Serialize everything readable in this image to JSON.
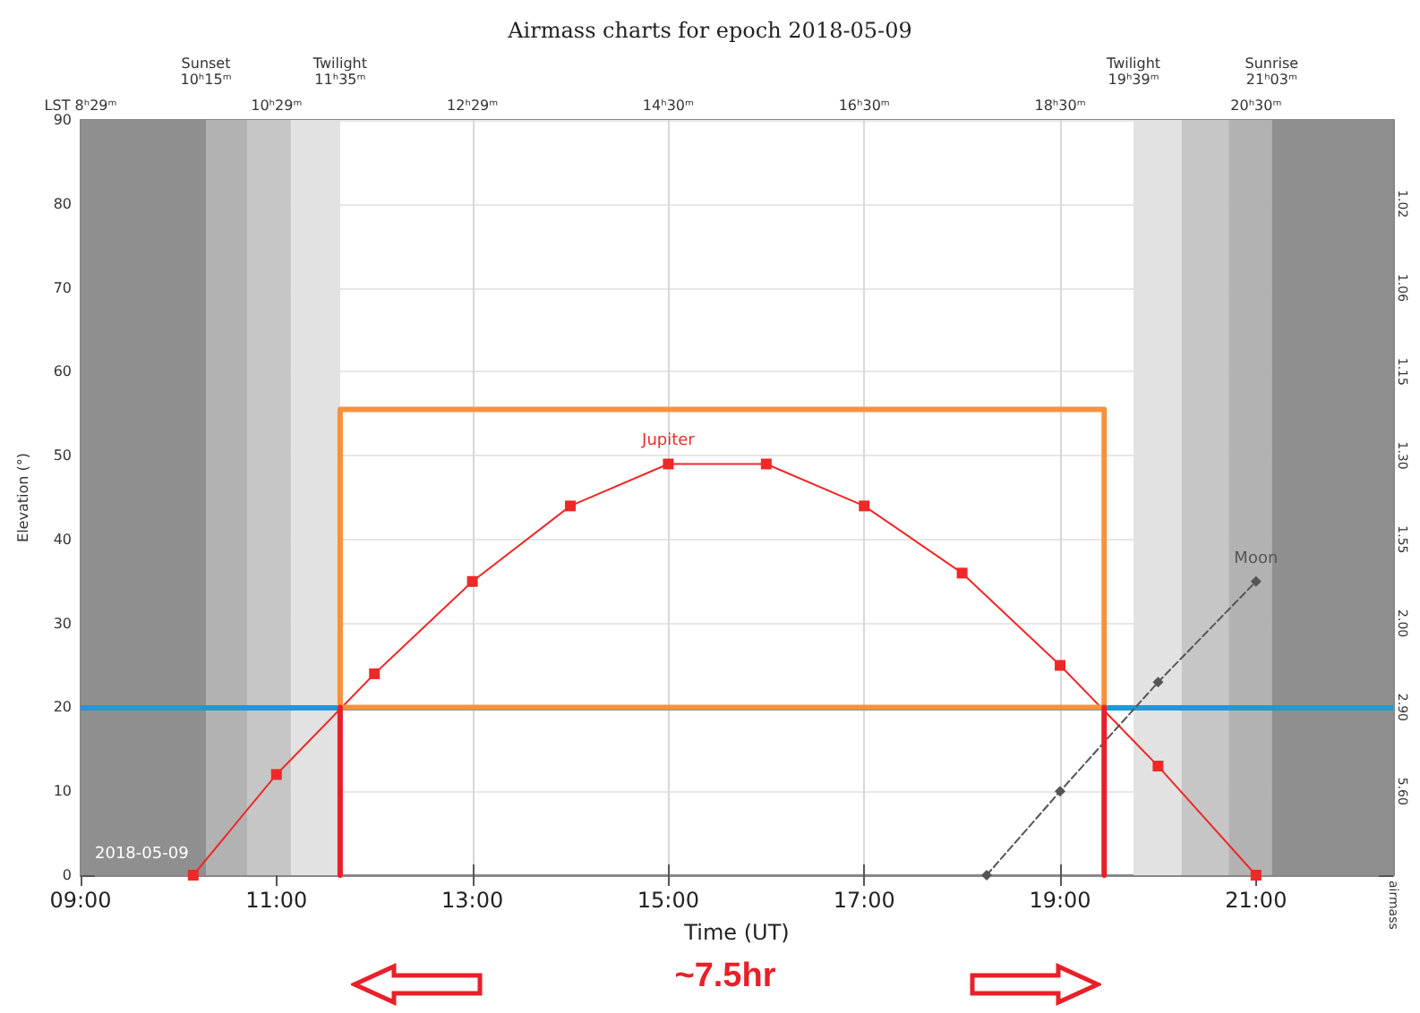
{
  "chart_data": {
    "type": "line",
    "title": "Airmass charts for epoch 2018-05-09",
    "xlabel": "Time (UT)",
    "ylabel": "Elevation (°)",
    "xlim": [
      9,
      22.4
    ],
    "xticks": [
      {
        "value": 9,
        "label": "09:00"
      },
      {
        "value": 11,
        "label": "11:00"
      },
      {
        "value": 13,
        "label": "13:00"
      },
      {
        "value": 15,
        "label": "15:00"
      },
      {
        "value": 17,
        "label": "17:00"
      },
      {
        "value": 19,
        "label": "19:00"
      },
      {
        "value": 21,
        "label": "21:00"
      }
    ],
    "ylim": [
      0,
      90
    ],
    "yticks": [
      0,
      10,
      20,
      30,
      40,
      50,
      60,
      70,
      80,
      90
    ],
    "y2label": "airmass",
    "grid": true,
    "legend": false,
    "series": [
      {
        "name": "Jupiter",
        "color": "#f02828",
        "marker": "square",
        "line_style": "solid",
        "x": [
          10.15,
          11,
          12,
          13,
          14,
          15,
          16,
          17,
          18,
          19,
          20,
          21
        ],
        "values": [
          0,
          12,
          24,
          35,
          44,
          49,
          49,
          44,
          36,
          25,
          13,
          0
        ]
      },
      {
        "name": "Moon",
        "color": "#555555",
        "marker": "diamond",
        "line_style": "dashed",
        "x": [
          18.25,
          19,
          20,
          21
        ],
        "values": [
          0,
          10,
          23,
          35
        ]
      },
      {
        "color": "#f7913d",
        "marker": "none",
        "line_style": "solid",
        "x": [
          11.65,
          11.65,
          19.45,
          19.45
        ],
        "values": [
          20,
          55.5,
          55.5,
          20
        ]
      },
      {
        "color": "#f7913d",
        "marker": "none",
        "line_style": "solid",
        "x": [
          11.65,
          19.45
        ],
        "values": [
          20,
          20
        ]
      },
      {
        "color": "#e8202a",
        "marker": "none",
        "line_style": "solid",
        "x": [
          11.65,
          11.65
        ],
        "values": [
          0,
          20
        ]
      },
      {
        "color": "#e8202a",
        "marker": "none",
        "line_style": "solid",
        "x": [
          19.45,
          19.45
        ],
        "values": [
          0,
          20
        ]
      }
    ],
    "ref_lines": [
      {
        "axis": "y",
        "value": 20,
        "color": "#1c9ad6"
      }
    ],
    "bands": [
      {
        "axis": "x",
        "from": 9,
        "to": 10.28,
        "color": "#8f8f8f"
      },
      {
        "axis": "x",
        "from": 10.28,
        "to": 10.7,
        "color": "#b2b2b2"
      },
      {
        "axis": "x",
        "from": 10.7,
        "to": 11.15,
        "color": "#c6c6c6"
      },
      {
        "axis": "x",
        "from": 11.15,
        "to": 11.65,
        "color": "#e2e2e2"
      },
      {
        "axis": "x",
        "from": 19.75,
        "to": 20.24,
        "color": "#e2e2e2"
      },
      {
        "axis": "x",
        "from": 20.24,
        "to": 20.72,
        "color": "#c6c6c6"
      },
      {
        "axis": "x",
        "from": 20.72,
        "to": 21.16,
        "color": "#b2b2b2"
      },
      {
        "axis": "x",
        "from": 21.16,
        "to": 22.4,
        "color": "#8f8f8f"
      }
    ],
    "annotations": [
      "2018-05-09",
      "~7.5hr",
      {
        "text": "Sunset\n10ʰ15ᵐ",
        "x": 10.28,
        "y": 90
      },
      {
        "text": "Twilight\n11ʰ35ᵐ",
        "x": 11.65,
        "y": 90
      },
      {
        "text": "Twilight\n19ʰ39ᵐ",
        "x": 19.75,
        "y": 90
      },
      {
        "text": "Sunrise\n21ʰ03ᵐ",
        "x": 21.16,
        "y": 90
      },
      "LST 8ʰ29ᵐ",
      "10ʰ29ᵐ",
      "12ʰ29ᵐ",
      "14ʰ30ᵐ",
      "16ʰ30ᵐ",
      "18ʰ30ᵐ",
      "20ʰ30ᵐ",
      {
        "text": "5.60",
        "x": 22.4,
        "y": 10
      },
      {
        "text": "2.90",
        "x": 22.4,
        "y": 20
      },
      {
        "text": "2.00",
        "x": 22.4,
        "y": 30
      },
      {
        "text": "1.55",
        "x": 22.4,
        "y": 40
      },
      {
        "text": "1.30",
        "x": 22.4,
        "y": 50
      },
      {
        "text": "1.15",
        "x": 22.4,
        "y": 60
      },
      {
        "text": "1.06",
        "x": 22.4,
        "y": 70
      },
      {
        "text": "1.02",
        "x": 22.4,
        "y": 80
      }
    ]
  }
}
